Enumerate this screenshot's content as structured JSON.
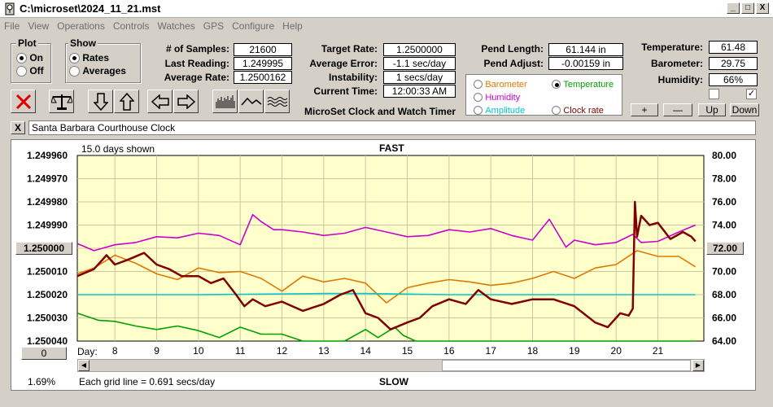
{
  "window": {
    "title": "C:\\microset\\2024_11_21.mst",
    "minimize": "_",
    "maximize": "□",
    "close": "X"
  },
  "menu": [
    "File",
    "View",
    "Operations",
    "Controls",
    "Watches",
    "GPS",
    "Configure",
    "Help"
  ],
  "plot_group": {
    "title": "Plot",
    "on": "On",
    "off": "Off",
    "selected": "On"
  },
  "show_group": {
    "title": "Show",
    "rates": "Rates",
    "averages": "Averages",
    "selected": "Rates"
  },
  "stats": {
    "samples_label": "# of Samples:",
    "samples": "21600",
    "last_reading_label": "Last Reading:",
    "last_reading": "1.249995",
    "average_rate_label": "Average Rate:",
    "average_rate": "1.2500162",
    "target_rate_label": "Target Rate:",
    "target_rate": "1.2500000",
    "average_error_label": "Average Error:",
    "average_error": "-1.1 sec/day",
    "instability_label": "Instability:",
    "instability": "1 secs/day",
    "current_time_label": "Current Time:",
    "current_time": "12:00:33 AM",
    "pend_length_label": "Pend Length:",
    "pend_length": "61.144 in",
    "pend_adjust_label": "Pend Adjust:",
    "pend_adjust": "-0.00159 in",
    "temperature_label": "Temperature:",
    "temperature": "61.48",
    "barometer_label": "Barometer:",
    "barometer": "29.75",
    "humidity_label": "Humidity:",
    "humidity": "66%"
  },
  "app_name": "MicroSet Clock and Watch Timer",
  "overlay_options": {
    "barometer": "Barometer",
    "temperature": "Temperature",
    "humidity": "Humidity",
    "amplitude": "Amplitude",
    "clock_rate": "Clock rate",
    "selected": "Temperature",
    "colors": {
      "barometer": "#e07800",
      "temperature": "#00a000",
      "humidity": "#cc00cc",
      "amplitude": "#00c8c8",
      "clock_rate": "#800000"
    }
  },
  "adjust_buttons": {
    "plus": "+",
    "minus": "—",
    "up": "Up",
    "down": "Down"
  },
  "checkboxes": {
    "left": false,
    "right": true
  },
  "clock_name": "Santa Barbara Courthouse Clock",
  "clock_close": "X",
  "chart_data": {
    "type": "line",
    "days_shown": "15.0 days shown",
    "top_label": "FAST",
    "bottom_label": "SLOW",
    "grid_note": "Each grid line = 0.691 secs/day",
    "left_button": "1.250000",
    "right_button": "72.00",
    "scroll_value": "0",
    "percent": "1.69%",
    "x_label": "Day:",
    "x_ticks": [
      "8",
      "9",
      "10",
      "11",
      "12",
      "13",
      "14",
      "15",
      "16",
      "17",
      "18",
      "19",
      "20",
      "21"
    ],
    "x_tick_days": [
      8,
      9,
      10,
      11,
      12,
      13,
      14,
      15,
      16,
      17,
      18,
      19,
      20,
      21
    ],
    "xlim": [
      7.1,
      22.1
    ],
    "y_left_ticks": [
      "1.249960",
      "1.249970",
      "1.249980",
      "1.249990",
      "1.250000",
      "1.250010",
      "1.250020",
      "1.250030",
      "1.250040"
    ],
    "y_left_range": [
      1.24996,
      1.25004
    ],
    "y_right_ticks": [
      "80.00",
      "78.00",
      "76.00",
      "74.00",
      "72.00",
      "70.00",
      "68.00",
      "66.00",
      "64.00"
    ],
    "y_right_range": [
      64,
      80
    ],
    "series": [
      {
        "name": "Humidity",
        "axis": "right",
        "color": "#cc00cc",
        "x": [
          7.1,
          7.5,
          8,
          8.5,
          9,
          9.5,
          10,
          10.5,
          11,
          11.3,
          11.5,
          11.8,
          12,
          12.5,
          13,
          13.5,
          14,
          14.5,
          15,
          15.5,
          16,
          16.5,
          17,
          17.5,
          18,
          18.4,
          18.8,
          19,
          19.5,
          20,
          20.4,
          20.6,
          21,
          21.5,
          21.9
        ],
        "y": [
          72.4,
          71.8,
          72.3,
          72.5,
          73.0,
          72.9,
          73.3,
          73.1,
          72.3,
          74.9,
          74.3,
          73.6,
          73.6,
          73.4,
          73.1,
          73.3,
          73.8,
          73.4,
          73.0,
          73.1,
          73.6,
          73.4,
          73.7,
          73.1,
          72.7,
          74.5,
          72.1,
          72.7,
          72.3,
          72.5,
          73.2,
          72.5,
          72.6,
          73.4,
          74.0
        ]
      },
      {
        "name": "Barometer",
        "axis": "right",
        "color": "#e07800",
        "x": [
          7.1,
          7.5,
          8,
          8.5,
          9,
          9.5,
          10,
          10.5,
          11,
          11.5,
          12,
          12.5,
          13,
          13.5,
          14,
          14.5,
          15,
          15.5,
          16,
          16.5,
          17,
          17.5,
          18,
          18.5,
          19,
          19.5,
          20,
          20.5,
          21,
          21.5,
          21.9
        ],
        "y": [
          69.8,
          70.3,
          71.4,
          70.7,
          69.8,
          69.3,
          70.3,
          69.9,
          70.0,
          69.4,
          68.3,
          69.6,
          69.1,
          69.4,
          69.0,
          67.3,
          68.6,
          69.0,
          69.3,
          69.1,
          68.8,
          69.0,
          69.4,
          70.0,
          69.4,
          70.3,
          70.6,
          71.8,
          71.3,
          71.3,
          70.4
        ]
      },
      {
        "name": "Amplitude",
        "axis": "right",
        "color": "#00c8c8",
        "x": [
          7.1,
          10,
          13,
          14,
          16,
          19,
          21.9
        ],
        "y": [
          68.0,
          68.0,
          68.1,
          68.1,
          68.0,
          68.0,
          68.0
        ]
      },
      {
        "name": "Temperature",
        "axis": "right",
        "color": "#00a000",
        "x": [
          7.1,
          7.6,
          8,
          8.5,
          9,
          9.5,
          10,
          10.5,
          11,
          11.5,
          12,
          12.5,
          13,
          13.5,
          14,
          14.3,
          14.7,
          14.9,
          15.2,
          16,
          18,
          20,
          21.9
        ],
        "y": [
          66.4,
          65.8,
          65.7,
          65.3,
          65.0,
          65.3,
          64.9,
          64.3,
          65.2,
          64.6,
          64.6,
          64.0,
          64.0,
          64.0,
          65.0,
          64.3,
          65.2,
          64.5,
          64.0,
          64.0,
          64.0,
          64.0,
          64.0
        ]
      },
      {
        "name": "Clock rate",
        "axis": "left",
        "color": "#800000",
        "x": [
          7.1,
          7.5,
          7.8,
          8,
          8.3,
          8.7,
          9,
          9.3,
          9.6,
          10,
          10.3,
          10.6,
          10.9,
          11.1,
          11.3,
          11.6,
          12,
          12.5,
          13,
          13.4,
          13.7,
          14,
          14.3,
          14.6,
          15,
          15.3,
          15.6,
          16,
          16.4,
          16.7,
          17,
          17.5,
          18,
          18.5,
          19,
          19.5,
          19.8,
          20.1,
          20.3,
          20.4,
          20.45,
          20.5,
          20.6,
          20.8,
          21,
          21.3,
          21.6,
          21.8,
          21.9
        ],
        "y": [
          1.250012,
          1.250009,
          1.250003,
          1.250007,
          1.250005,
          1.250002,
          1.250007,
          1.250009,
          1.250012,
          1.250012,
          1.250015,
          1.250013,
          1.25002,
          1.250025,
          1.250022,
          1.250025,
          1.250023,
          1.250027,
          1.250024,
          1.25002,
          1.250018,
          1.250028,
          1.25003,
          1.250035,
          1.250032,
          1.25003,
          1.250025,
          1.250022,
          1.250024,
          1.250018,
          1.250022,
          1.250024,
          1.250022,
          1.250022,
          1.250025,
          1.250032,
          1.250034,
          1.250028,
          1.250029,
          1.250026,
          1.24998,
          1.249995,
          1.249986,
          1.24999,
          1.249989,
          1.249996,
          1.249993,
          1.249995,
          1.249997
        ]
      }
    ]
  }
}
